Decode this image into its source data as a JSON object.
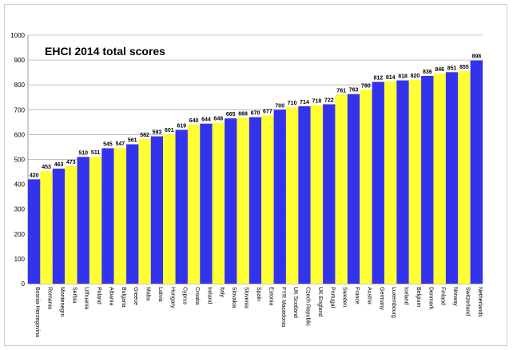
{
  "chart_data": {
    "type": "bar",
    "title": "EHCI 2014 total scores",
    "xlabel": "",
    "ylabel": "",
    "ylim": [
      0,
      1000
    ],
    "yticks": [
      0,
      100,
      200,
      300,
      400,
      500,
      600,
      700,
      800,
      900,
      1000
    ],
    "grid": true,
    "legend": "none",
    "colors": {
      "odd": "#3333ee",
      "even": "#ffff33",
      "grid": "#b0b0b0"
    },
    "categories": [
      "Bosnia-Herzegovina",
      "Romania",
      "Montenegro",
      "Serbia",
      "Lithuania",
      "Poland",
      "Albania",
      "Bulgaria",
      "Greece",
      "Malta",
      "Latvia",
      "Hungary",
      "Cyprus",
      "Croatia",
      "Ireland",
      "Italy",
      "Slovakia",
      "Slovenia",
      "Spain",
      "Estonia",
      "FYR Macedonia",
      "UK Scotland",
      "Czech Republic",
      "UK England",
      "Portugal",
      "Sweden",
      "France",
      "Austria",
      "Germany",
      "Luxembourg",
      "Iceland",
      "Belgium",
      "Denmark",
      "Finland",
      "Norway",
      "Switzerland",
      "Netherlands"
    ],
    "values": [
      420,
      453,
      463,
      473,
      510,
      511,
      545,
      547,
      561,
      582,
      593,
      601,
      619,
      640,
      644,
      648,
      665,
      668,
      670,
      677,
      700,
      710,
      714,
      718,
      722,
      761,
      763,
      780,
      812,
      814,
      818,
      820,
      836,
      846,
      851,
      855,
      898
    ]
  }
}
